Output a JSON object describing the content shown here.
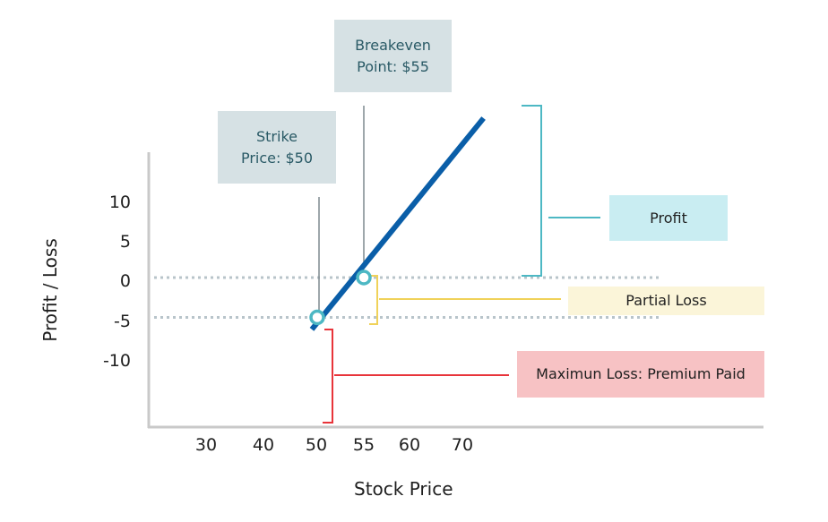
{
  "chart_data": {
    "type": "line",
    "title": "",
    "xlabel": "Stock Price",
    "ylabel": "Profit / Loss",
    "x_ticks": [
      30,
      40,
      50,
      55,
      60,
      70
    ],
    "y_ticks": [
      10,
      5,
      0,
      -5,
      -10
    ],
    "series": [
      {
        "x": [
          49,
          74
        ],
        "y": [
          -6.5,
          20
        ]
      }
    ],
    "points": [
      {
        "x": 50,
        "y": -5
      },
      {
        "x": 55,
        "y": 0
      }
    ],
    "reference_lines_y": [
      0,
      -5
    ],
    "grid": false,
    "colors": {
      "line": "#0a5ea8",
      "point_stroke": "#4db8c4",
      "axis": "#c9c9c9",
      "dotted": "#b8c4ca",
      "profit": "#4db8c4",
      "partial_loss": "#f0d25a",
      "max_loss": "#e8343a"
    }
  },
  "annotations": {
    "breakeven": {
      "label": "Breakeven\nPoint: $55",
      "bg": "#d6e1e4",
      "color": "#2a5a66"
    },
    "strike": {
      "label": "Strike\nPrice: $50",
      "bg": "#d6e1e4",
      "color": "#2a5a66"
    },
    "profit": {
      "label": "Profit",
      "bg": "#c9edf2",
      "color": "#1f1f1f"
    },
    "partial_loss": {
      "label": "Partial Loss",
      "bg": "#fbf5d9",
      "color": "#1f1f1f"
    },
    "max_loss": {
      "label": "Maximun Loss: Premium Paid",
      "bg": "#f7c2c4",
      "color": "#1f1f1f"
    }
  }
}
